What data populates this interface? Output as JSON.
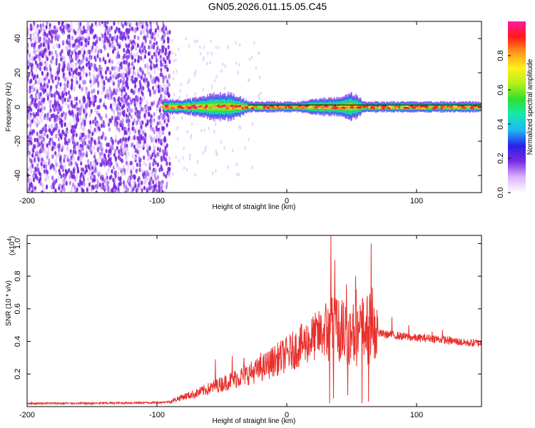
{
  "title": "GN05.2026.011.15.05.C45",
  "colors": {
    "snr_line": "#e8302c",
    "spec_scatter": "#7a2be0",
    "trace_line": "#000000"
  },
  "chart_data": [
    {
      "type": "heatmap",
      "name": "spectrogram",
      "xlabel": "Height of straight line (km)",
      "ylabel": "Frequency (Hz)",
      "xlim": [
        -200,
        150
      ],
      "ylim": [
        -50,
        50
      ],
      "xticks": [
        -200,
        -100,
        0,
        100
      ],
      "yticks": [
        -40,
        -20,
        0,
        20,
        40
      ],
      "colorbar": {
        "label": "Normalized spectral amplitude",
        "range": [
          0,
          1
        ],
        "ticks": [
          "0.0",
          "0.2",
          "0.4",
          "0.6",
          "0.8"
        ],
        "tick_values": [
          0.0,
          0.2,
          0.4,
          0.6,
          0.8
        ],
        "colormap": [
          "#ffffff",
          "#d9b3ff",
          "#7a2be0",
          "#2a1fe8",
          "#1fb7f5",
          "#14e8b0",
          "#2ee02e",
          "#b4f01a",
          "#fff01a",
          "#ff9a1a",
          "#ff1a1a",
          "#ff1aa0"
        ]
      },
      "band": {
        "description_values": "energy concentrated near 0 Hz from -95 km to 150 km",
        "x_start": -95,
        "x_end": 150,
        "center_freq": 0,
        "half_width": [
          [
            -95,
            4
          ],
          [
            -80,
            4
          ],
          [
            -70,
            5
          ],
          [
            -60,
            7
          ],
          [
            -50,
            8
          ],
          [
            -40,
            7
          ],
          [
            -30,
            3
          ],
          [
            -20,
            3
          ],
          [
            -10,
            3
          ],
          [
            0,
            3
          ],
          [
            10,
            3
          ],
          [
            20,
            4
          ],
          [
            30,
            5
          ],
          [
            40,
            5
          ],
          [
            50,
            8
          ],
          [
            60,
            3
          ],
          [
            80,
            3
          ],
          [
            100,
            3
          ],
          [
            120,
            3
          ],
          [
            150,
            3
          ]
        ]
      }
    },
    {
      "type": "line",
      "name": "snr",
      "xlabel": "Height of straight line (km)",
      "ylabel": "SNR (10 * v/v)",
      "y_multiplier": "(x10",
      "y_multiplier_exp": "4",
      "xlim": [
        -200,
        150
      ],
      "ylim": [
        0,
        1.05
      ],
      "xticks": [
        -200,
        -100,
        0,
        100
      ],
      "yticks": [
        "0.2",
        "0.4",
        "0.6",
        "0.8",
        "1.0"
      ],
      "ytick_values": [
        0.2,
        0.4,
        0.6,
        0.8,
        1.0
      ],
      "envelope": [
        [
          -200,
          0.02
        ],
        [
          -150,
          0.02
        ],
        [
          -100,
          0.025
        ],
        [
          -90,
          0.03
        ],
        [
          -80,
          0.06
        ],
        [
          -70,
          0.08
        ],
        [
          -60,
          0.11
        ],
        [
          -50,
          0.14
        ],
        [
          -40,
          0.17
        ],
        [
          -30,
          0.2
        ],
        [
          -20,
          0.23
        ],
        [
          -10,
          0.28
        ],
        [
          0,
          0.32
        ],
        [
          10,
          0.37
        ],
        [
          20,
          0.42
        ],
        [
          30,
          0.46
        ],
        [
          40,
          0.48
        ],
        [
          50,
          0.44
        ],
        [
          60,
          0.46
        ],
        [
          70,
          0.45
        ],
        [
          80,
          0.44
        ],
        [
          90,
          0.43
        ],
        [
          100,
          0.42
        ],
        [
          110,
          0.42
        ],
        [
          120,
          0.41
        ],
        [
          130,
          0.4
        ],
        [
          140,
          0.39
        ],
        [
          150,
          0.39
        ]
      ],
      "peaks": [
        [
          -55,
          0.29
        ],
        [
          -42,
          0.31
        ],
        [
          -33,
          0.3
        ],
        [
          -20,
          0.33
        ],
        [
          34,
          1.06
        ],
        [
          37,
          0.9
        ],
        [
          40,
          0.65
        ],
        [
          46,
          0.75
        ],
        [
          53,
          0.8
        ],
        [
          58,
          0.92
        ],
        [
          62,
          0.68
        ],
        [
          65,
          1.0
        ],
        [
          70,
          0.55
        ],
        [
          81,
          0.55
        ],
        [
          94,
          0.5
        ],
        [
          112,
          0.46
        ],
        [
          120,
          0.47
        ]
      ],
      "dips": [
        [
          33,
          0.02
        ],
        [
          36,
          0.05
        ],
        [
          47,
          0.07
        ],
        [
          58,
          0.02
        ],
        [
          63,
          0.03
        ]
      ]
    }
  ]
}
